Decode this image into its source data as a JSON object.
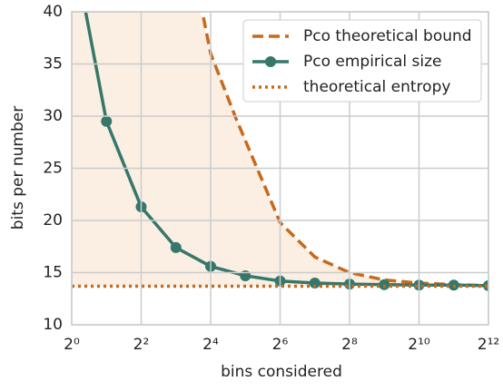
{
  "chart_data": {
    "type": "line",
    "xlabel": "bins considered",
    "ylabel": "bits per number",
    "xscale": "log2",
    "grid": true,
    "legend": "upper right",
    "shade_color": "#fbeee2",
    "xlim": [
      1,
      4096
    ],
    "xticks": [
      {
        "value": 1,
        "label": "2⁰"
      },
      {
        "value": 4,
        "label": "2²"
      },
      {
        "value": 16,
        "label": "2⁴"
      },
      {
        "value": 64,
        "label": "2⁶"
      },
      {
        "value": 256,
        "label": "2⁸"
      },
      {
        "value": 1024,
        "label": "2¹⁰"
      },
      {
        "value": 4096,
        "label": "2¹²"
      }
    ],
    "ylim": [
      10,
      40
    ],
    "yticks": [
      10,
      15,
      20,
      25,
      30,
      35,
      40
    ],
    "series": [
      {
        "name": "Pco theoretical bound",
        "color": "#c8691c",
        "style": "dashed",
        "x": [
          13,
          16,
          26.5,
          64,
          128,
          256,
          512,
          1024,
          2048,
          4096
        ],
        "values": [
          41,
          36,
          29.8,
          19.8,
          16.5,
          15,
          14.3,
          14.0,
          13.85,
          13.75
        ]
      },
      {
        "name": "Pco empirical size",
        "color": "#35776b",
        "style": "solid",
        "markers": true,
        "x": [
          1,
          2,
          4,
          8,
          16,
          32,
          64,
          128,
          256,
          512,
          1024,
          2048,
          4096
        ],
        "values": [
          47,
          29.5,
          21.3,
          17.4,
          15.6,
          14.7,
          14.2,
          14.0,
          13.9,
          13.85,
          13.8,
          13.8,
          13.75
        ]
      },
      {
        "name": "theoretical entropy",
        "color": "#c8691c",
        "style": "dotted",
        "x": [
          1,
          4096
        ],
        "values": [
          13.7,
          13.7
        ]
      }
    ]
  }
}
